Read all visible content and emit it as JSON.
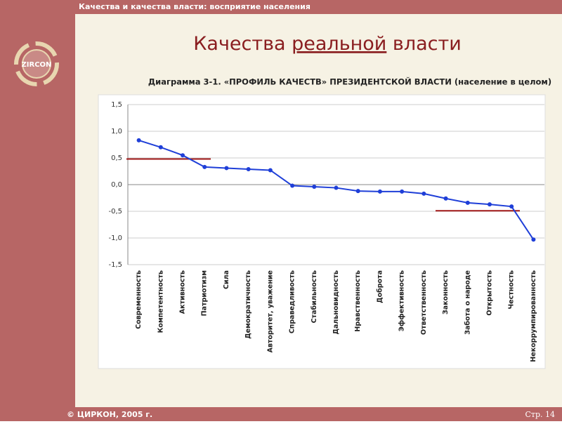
{
  "slide": {
    "header": "Качества и качества власти: восприятие населения",
    "logo": "ZIRCON",
    "title": [
      "Качества",
      "реальной",
      "власти"
    ],
    "footer": "© ЦИРКОН, 2005 г.",
    "page": "Стр. 14"
  },
  "chart_data": {
    "type": "line",
    "title": "Диаграмма 3-1. «ПРОФИЛЬ КАЧЕСТВ» ПРЕЗИДЕНТСКОЙ ВЛАСТИ (население в целом)",
    "categories": [
      "Современность",
      "Компетентность",
      "Активность",
      "Патриотизм",
      "Сила",
      "Демократичность",
      "Авторитет, уважение",
      "Справедливость",
      "Стабильность",
      "Дальновидность",
      "Нравственность",
      "Доброта",
      "Эффективность",
      "Ответственность",
      "Законность",
      "Забота о народе",
      "Открытость",
      "Честность",
      "Некоррумпированность"
    ],
    "values": [
      0.83,
      0.7,
      0.55,
      0.33,
      0.31,
      0.29,
      0.27,
      -0.02,
      -0.04,
      -0.06,
      -0.12,
      -0.13,
      -0.13,
      -0.17,
      -0.26,
      -0.34,
      -0.37,
      -0.41,
      -1.03
    ],
    "color": "#1f3fd8",
    "ylim": [
      -1.5,
      1.5
    ],
    "yticks": [
      {
        "value": -1.5,
        "label": "-1,5"
      },
      {
        "value": -1.0,
        "label": "-1,0"
      },
      {
        "value": -0.5,
        "label": "-0,5"
      },
      {
        "value": 0,
        "label": "0,0"
      },
      {
        "value": 0.5,
        "label": "0,5"
      },
      {
        "value": 1.0,
        "label": "1,0"
      },
      {
        "value": 1.5,
        "label": "1,5"
      }
    ],
    "grid": true,
    "reference_lines": [
      {
        "value": 0.48,
        "color": "#a01818"
      },
      {
        "value": -0.49,
        "color": "#a01818"
      }
    ]
  }
}
